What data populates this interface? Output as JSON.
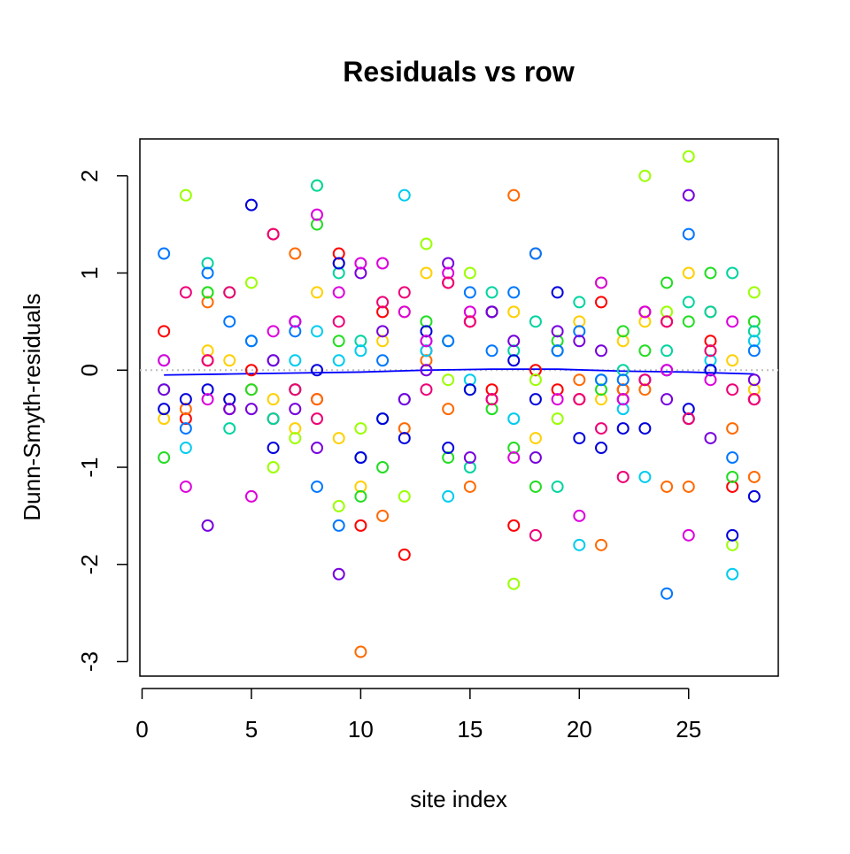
{
  "chart_data": {
    "type": "scatter",
    "title": "Residuals vs row",
    "xlabel": "site index",
    "ylabel": "Dunn-Smyth-residuals",
    "xlim": [
      -0.1,
      29.1
    ],
    "ylim": [
      -3.15,
      2.38
    ],
    "xticks": [
      0,
      5,
      10,
      15,
      20,
      25
    ],
    "yticks": [
      -3,
      -2,
      -1,
      0,
      1,
      2
    ],
    "x_tick_labels": [
      "0",
      "5",
      "10",
      "15",
      "20",
      "25"
    ],
    "y_tick_labels": [
      "-3",
      "-2",
      "-1",
      "0",
      "1",
      "2"
    ],
    "grid": false,
    "legend": "none",
    "reference_line": {
      "y": 0,
      "style": "dotted",
      "color": "#BEBEBE"
    },
    "smooth_line": {
      "color": "#0000FF",
      "x": [
        1,
        4,
        7,
        10,
        13,
        16,
        19,
        22,
        25,
        28
      ],
      "y": [
        -0.05,
        -0.04,
        -0.03,
        -0.02,
        0.0,
        0.01,
        0.01,
        -0.01,
        -0.02,
        -0.04
      ]
    },
    "series": [
      {
        "color": "#FF0000",
        "x": [
          1,
          2,
          3,
          4,
          5,
          6,
          7,
          8,
          9,
          10,
          11,
          12,
          13,
          14,
          15,
          16,
          17,
          18,
          19,
          20,
          21,
          22,
          23,
          24,
          25,
          26,
          27,
          28
        ],
        "y": [
          0.4,
          -0.5,
          0.1,
          -0.4,
          0.0,
          -0.5,
          -0.2,
          -0.3,
          1.2,
          -1.6,
          0.6,
          -1.9,
          0.2,
          0.9,
          0.5,
          -0.2,
          -1.6,
          0.0,
          -0.2,
          -0.3,
          0.7,
          -0.2,
          0.6,
          0.5,
          -0.5,
          0.3,
          -1.2,
          -0.3
        ]
      },
      {
        "color": "#FF6A00",
        "x": [
          2,
          3,
          4,
          5,
          6,
          7,
          8,
          9,
          10,
          11,
          12,
          13,
          14,
          15,
          16,
          17,
          18,
          19,
          20,
          21,
          22,
          23,
          24,
          25,
          26,
          27,
          28
        ],
        "y": [
          -0.4,
          0.7,
          -0.3,
          -0.2,
          1.4,
          1.2,
          -0.3,
          1.1,
          -2.9,
          -1.5,
          -0.6,
          0.1,
          -0.4,
          -1.2,
          0.6,
          1.8,
          1.2,
          0.2,
          -0.1,
          -1.8,
          -0.2,
          -0.2,
          -1.2,
          -1.2,
          0.6,
          -0.6,
          -1.1
        ]
      },
      {
        "color": "#FFD000",
        "x": [
          1,
          3,
          4,
          6,
          7,
          8,
          9,
          10,
          11,
          12,
          13,
          14,
          16,
          17,
          18,
          20,
          21,
          22,
          23,
          25,
          27,
          28
        ],
        "y": [
          -0.5,
          0.2,
          0.1,
          -0.3,
          -0.6,
          0.8,
          -0.7,
          -1.2,
          0.3,
          0.6,
          1.0,
          0.3,
          0.6,
          0.6,
          -0.7,
          0.5,
          -0.3,
          0.3,
          0.5,
          1.0,
          0.1,
          -0.2
        ]
      },
      {
        "color": "#9BFF00",
        "x": [
          2,
          3,
          5,
          6,
          7,
          8,
          9,
          10,
          12,
          13,
          14,
          15,
          17,
          18,
          19,
          21,
          23,
          24,
          25,
          26,
          27,
          28
        ],
        "y": [
          1.8,
          0.8,
          0.9,
          -1.0,
          -0.7,
          1.9,
          -1.4,
          -0.6,
          -1.3,
          1.3,
          -0.1,
          1.0,
          -2.2,
          -0.1,
          -0.5,
          0.9,
          2.0,
          0.6,
          2.2,
          0.2,
          -1.8,
          0.8
        ]
      },
      {
        "color": "#22DD22",
        "x": [
          1,
          3,
          4,
          5,
          7,
          8,
          9,
          10,
          11,
          13,
          14,
          15,
          16,
          17,
          18,
          19,
          21,
          22,
          23,
          24,
          25,
          26,
          27,
          28
        ],
        "y": [
          -0.9,
          0.8,
          0.8,
          -0.2,
          -0.2,
          1.5,
          0.3,
          -1.3,
          -1.0,
          0.5,
          -0.9,
          -0.2,
          -0.4,
          -0.8,
          -1.2,
          0.3,
          -0.2,
          0.4,
          0.2,
          0.9,
          0.5,
          1.0,
          -1.1,
          0.5
        ]
      },
      {
        "color": "#00D4A0",
        "x": [
          1,
          3,
          4,
          6,
          8,
          9,
          10,
          11,
          14,
          15,
          16,
          17,
          18,
          19,
          20,
          21,
          22,
          24,
          25,
          26,
          27,
          28
        ],
        "y": [
          -0.2,
          1.1,
          -0.6,
          -0.5,
          1.9,
          1.0,
          0.3,
          -0.5,
          0.3,
          -1.0,
          0.8,
          0.2,
          0.5,
          -1.2,
          0.7,
          -0.1,
          0.0,
          0.2,
          0.7,
          0.6,
          1.0,
          0.4
        ]
      },
      {
        "color": "#00CCEE",
        "x": [
          1,
          2,
          5,
          7,
          8,
          9,
          10,
          12,
          13,
          14,
          15,
          17,
          19,
          20,
          22,
          23,
          25,
          26,
          27,
          28
        ],
        "y": [
          0.1,
          -0.8,
          0.3,
          0.1,
          0.4,
          0.1,
          0.2,
          1.8,
          0.2,
          -1.3,
          -0.1,
          -0.5,
          0.2,
          -1.8,
          -0.4,
          -1.1,
          -0.5,
          0.1,
          -2.1,
          0.3
        ]
      },
      {
        "color": "#0077FF",
        "x": [
          1,
          2,
          3,
          4,
          5,
          6,
          7,
          8,
          9,
          10,
          11,
          12,
          13,
          14,
          15,
          16,
          17,
          18,
          19,
          20,
          21,
          22,
          24,
          25,
          26,
          27,
          28
        ],
        "y": [
          1.2,
          -0.6,
          1.0,
          0.5,
          0.3,
          0.1,
          0.4,
          -1.2,
          -1.6,
          -0.9,
          0.1,
          -0.3,
          0.3,
          0.3,
          0.8,
          0.2,
          0.8,
          1.2,
          0.2,
          0.4,
          -0.1,
          -0.1,
          -2.3,
          1.4,
          0.0,
          -0.9,
          0.2
        ]
      },
      {
        "color": "#0000DD",
        "x": [
          1,
          2,
          3,
          4,
          5,
          6,
          7,
          8,
          9,
          10,
          11,
          12,
          13,
          14,
          15,
          16,
          17,
          18,
          19,
          20,
          21,
          22,
          23,
          24,
          25,
          26,
          27,
          28
        ],
        "y": [
          -0.4,
          -0.3,
          -0.2,
          -0.3,
          1.7,
          -0.8,
          0.5,
          0.0,
          1.1,
          -0.9,
          -0.5,
          -0.7,
          0.4,
          -0.8,
          -0.2,
          0.6,
          0.1,
          -0.3,
          0.8,
          -0.7,
          -0.8,
          -0.6,
          -0.6,
          0.0,
          -0.4,
          0.0,
          -1.7,
          -1.3
        ]
      },
      {
        "color": "#7700DD",
        "x": [
          1,
          3,
          4,
          5,
          6,
          7,
          8,
          9,
          10,
          11,
          12,
          13,
          14,
          15,
          16,
          17,
          18,
          19,
          20,
          21,
          22,
          23,
          24,
          25,
          26,
          28
        ],
        "y": [
          -0.2,
          -1.6,
          -0.4,
          -0.4,
          0.1,
          -0.4,
          -0.8,
          -2.1,
          1.0,
          0.4,
          -0.3,
          0.0,
          1.1,
          -0.9,
          0.6,
          0.3,
          -0.9,
          0.4,
          0.3,
          0.2,
          -0.3,
          -0.1,
          -0.3,
          1.8,
          -0.7,
          -0.1
        ]
      },
      {
        "color": "#DD00DD",
        "x": [
          1,
          2,
          3,
          5,
          6,
          7,
          8,
          9,
          10,
          11,
          12,
          13,
          14,
          15,
          16,
          17,
          19,
          20,
          21,
          22,
          23,
          24,
          25,
          26,
          27,
          28
        ],
        "y": [
          0.1,
          -1.2,
          -0.3,
          -1.3,
          0.4,
          0.5,
          1.6,
          0.8,
          1.1,
          1.1,
          0.6,
          0.3,
          1.0,
          0.6,
          -0.3,
          -0.9,
          -0.3,
          -1.5,
          0.9,
          -0.3,
          0.6,
          0.0,
          -1.7,
          -0.1,
          0.5,
          -0.3
        ]
      },
      {
        "color": "#EE0077",
        "x": [
          2,
          3,
          4,
          6,
          7,
          8,
          9,
          11,
          12,
          13,
          14,
          15,
          16,
          18,
          20,
          21,
          22,
          23,
          24,
          25,
          26,
          27,
          28
        ],
        "y": [
          0.8,
          0.1,
          0.8,
          1.4,
          -0.2,
          -0.5,
          0.5,
          0.7,
          0.8,
          -0.2,
          0.9,
          0.5,
          -0.3,
          -1.7,
          -0.3,
          -0.6,
          -1.1,
          -0.1,
          0.5,
          -0.5,
          0.2,
          -0.2,
          -0.3
        ]
      }
    ]
  }
}
